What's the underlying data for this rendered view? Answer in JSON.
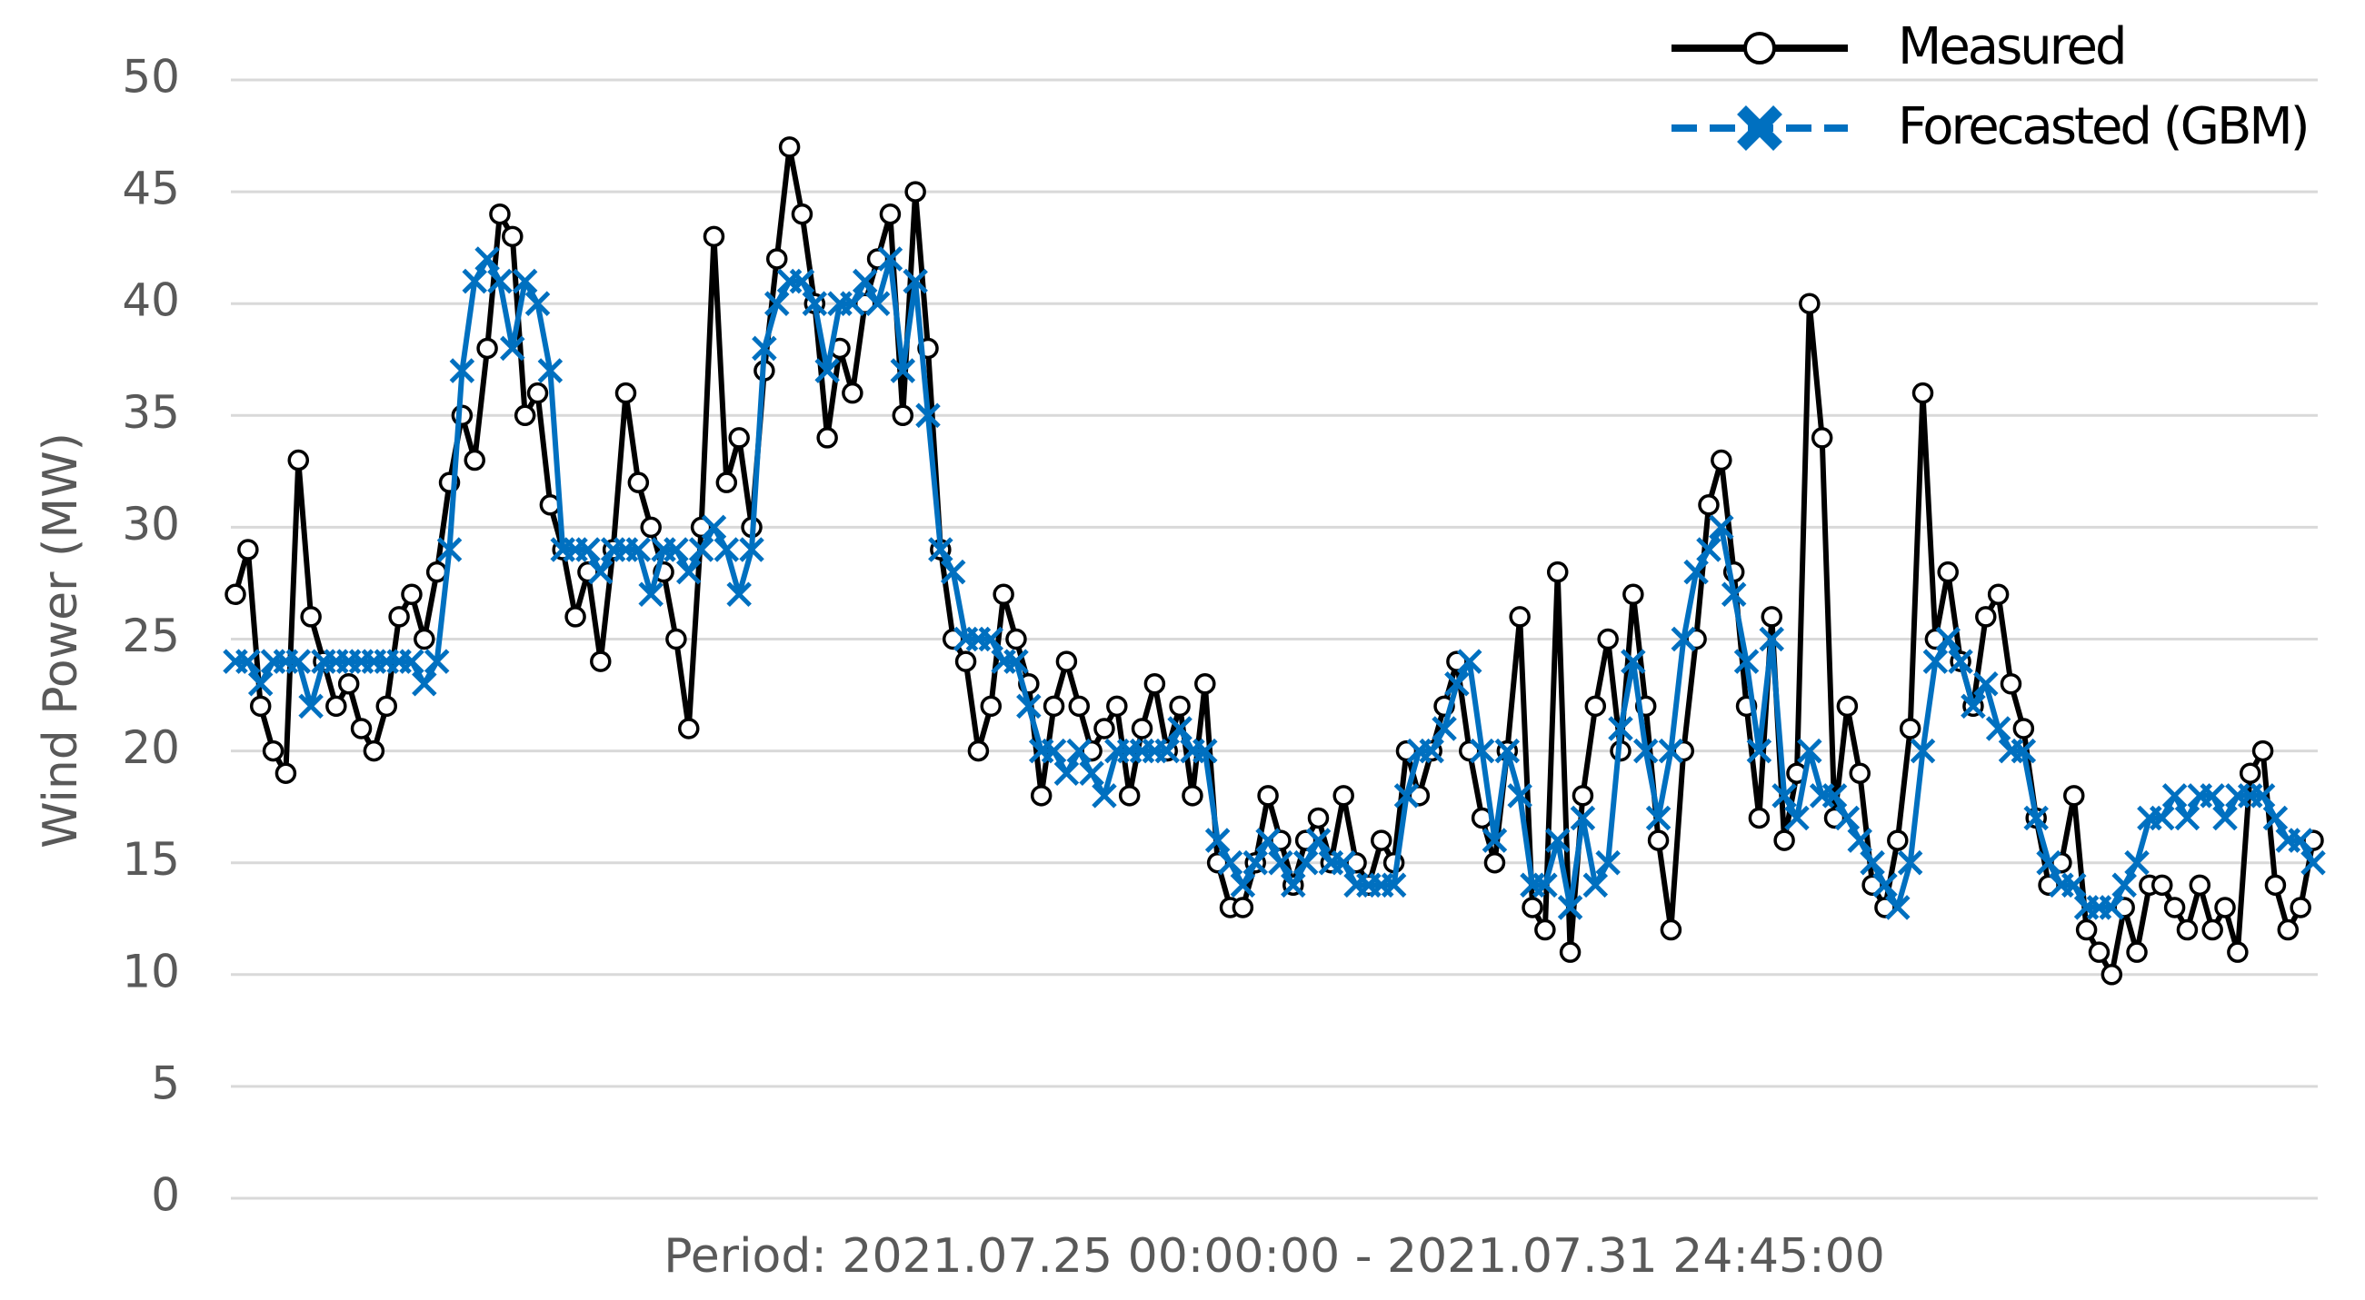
{
  "chart_data": {
    "type": "line",
    "y_label": "Wind Power (MW)",
    "x_label": "Period: 2021.07.25 00:00:00 - 2021.07.31 24:45:00",
    "ylim": [
      0,
      50
    ],
    "yticks": [
      0,
      5,
      10,
      15,
      20,
      25,
      30,
      35,
      40,
      45,
      50
    ],
    "grid": true,
    "legend": "top-right",
    "series": [
      {
        "name": "Measured",
        "color": "#000000",
        "marker": "circle",
        "values": [
          27,
          29,
          22,
          20,
          19,
          33,
          26,
          24,
          22,
          23,
          21,
          20,
          22,
          26,
          27,
          25,
          28,
          32,
          35,
          33,
          38,
          44,
          43,
          35,
          36,
          31,
          29,
          26,
          28,
          24,
          29,
          36,
          32,
          30,
          28,
          25,
          21,
          30,
          43,
          32,
          34,
          30,
          37,
          42,
          47,
          44,
          40,
          34,
          38,
          36,
          40,
          42,
          44,
          35,
          45,
          38,
          29,
          25,
          24,
          20,
          22,
          27,
          25,
          23,
          18,
          22,
          24,
          22,
          20,
          21,
          22,
          18,
          21,
          23,
          20,
          22,
          18,
          23,
          15,
          13,
          13,
          15,
          18,
          16,
          14,
          16,
          17,
          15,
          18,
          15,
          14,
          16,
          15,
          20,
          18,
          20,
          22,
          24,
          20,
          17,
          15,
          20,
          26,
          13,
          12,
          28,
          11,
          18,
          22,
          25,
          20,
          27,
          22,
          16,
          12,
          20,
          25,
          31,
          33,
          28,
          22,
          17,
          26,
          16,
          19,
          40,
          34,
          17,
          22,
          19,
          14,
          13,
          16,
          21,
          36,
          25,
          28,
          24,
          22,
          26,
          27,
          23,
          21,
          17,
          14,
          15,
          18,
          12,
          11,
          10,
          13,
          11,
          14,
          14,
          13,
          12,
          14,
          12,
          13,
          11,
          19,
          20,
          14,
          12,
          13,
          16
        ]
      },
      {
        "name": "Forecasted (GBM)",
        "color": "#0070c0",
        "marker": "x",
        "values": [
          24,
          24,
          23,
          24,
          24,
          24,
          22,
          24,
          24,
          24,
          24,
          24,
          24,
          24,
          24,
          23,
          24,
          29,
          37,
          41,
          42,
          41,
          38,
          41,
          40,
          37,
          29,
          29,
          29,
          28,
          29,
          29,
          29,
          27,
          29,
          29,
          28,
          29,
          30,
          29,
          27,
          29,
          38,
          40,
          41,
          41,
          40,
          37,
          40,
          40,
          41,
          40,
          42,
          37,
          41,
          35,
          29,
          28,
          25,
          25,
          25,
          24,
          24,
          22,
          20,
          20,
          19,
          20,
          19,
          18,
          20,
          20,
          20,
          20,
          20,
          21,
          20,
          20,
          16,
          15,
          14,
          15,
          16,
          15,
          14,
          15,
          16,
          15,
          15,
          14,
          14,
          14,
          14,
          18,
          20,
          20,
          21,
          23,
          24,
          20,
          16,
          20,
          18,
          14,
          14,
          16,
          13,
          17,
          14,
          15,
          21,
          24,
          20,
          17,
          20,
          25,
          28,
          29,
          30,
          27,
          24,
          20,
          25,
          18,
          17,
          20,
          18,
          18,
          17,
          16,
          15,
          14,
          13,
          15,
          20,
          24,
          25,
          24,
          22,
          23,
          21,
          20,
          20,
          17,
          15,
          14,
          14,
          13,
          13,
          13,
          14,
          15,
          17,
          17,
          18,
          17,
          18,
          18,
          17,
          18,
          18,
          18,
          17,
          16,
          16,
          15
        ]
      }
    ]
  }
}
